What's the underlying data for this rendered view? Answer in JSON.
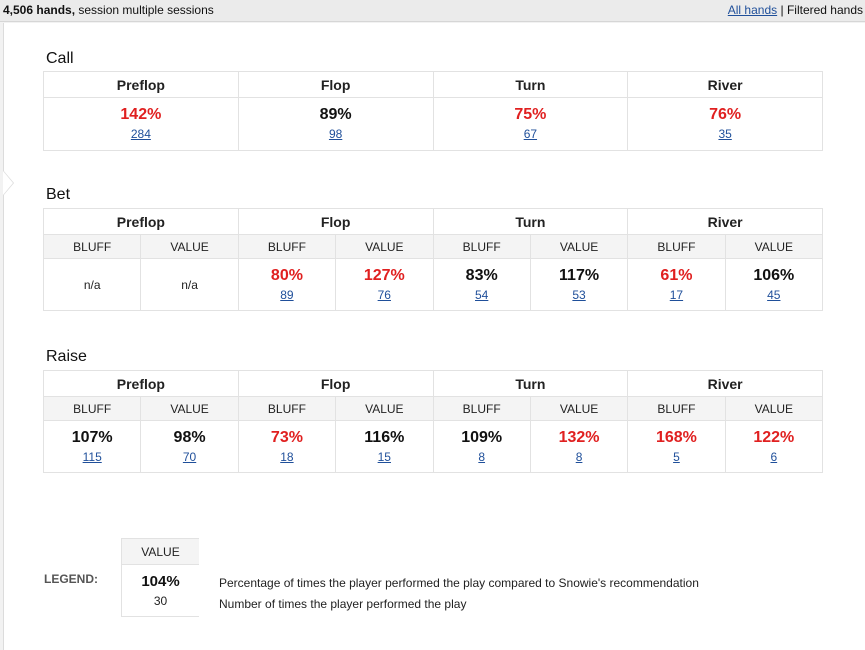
{
  "header": {
    "hands_bold": "4,506 hands,",
    "session_text": " session multiple sessions",
    "all_hands_link": "All hands",
    "separator": "|",
    "filtered_hands": "Filtered hands"
  },
  "streets": [
    "Preflop",
    "Flop",
    "Turn",
    "River"
  ],
  "sub_headers": {
    "bluff": "BLUFF",
    "value": "VALUE"
  },
  "call": {
    "title": "Call",
    "cells": [
      {
        "pct": "142%",
        "count": "284",
        "color": "#e02020"
      },
      {
        "pct": "89%",
        "count": "98",
        "color": "#111111"
      },
      {
        "pct": "75%",
        "count": "67",
        "color": "#e02020"
      },
      {
        "pct": "76%",
        "count": "35",
        "color": "#e02020"
      }
    ]
  },
  "bet": {
    "title": "Bet",
    "cells": [
      {
        "na": "n/a"
      },
      {
        "na": "n/a"
      },
      {
        "pct": "80%",
        "count": "89",
        "color": "#e02020"
      },
      {
        "pct": "127%",
        "count": "76",
        "color": "#e02020"
      },
      {
        "pct": "83%",
        "count": "54",
        "color": "#111111"
      },
      {
        "pct": "117%",
        "count": "53",
        "color": "#111111"
      },
      {
        "pct": "61%",
        "count": "17",
        "color": "#e02020"
      },
      {
        "pct": "106%",
        "count": "45",
        "color": "#111111"
      }
    ]
  },
  "raise": {
    "title": "Raise",
    "cells": [
      {
        "pct": "107%",
        "count": "115",
        "color": "#111111"
      },
      {
        "pct": "98%",
        "count": "70",
        "color": "#111111"
      },
      {
        "pct": "73%",
        "count": "18",
        "color": "#e02020"
      },
      {
        "pct": "116%",
        "count": "15",
        "color": "#111111"
      },
      {
        "pct": "109%",
        "count": "8",
        "color": "#111111"
      },
      {
        "pct": "132%",
        "count": "8",
        "color": "#e02020"
      },
      {
        "pct": "168%",
        "count": "5",
        "color": "#e02020"
      },
      {
        "pct": "122%",
        "count": "6",
        "color": "#e02020"
      }
    ]
  },
  "legend": {
    "label": "LEGEND:",
    "header": "VALUE",
    "pct": "104%",
    "count": "30",
    "pct_desc": "Percentage of times the player performed the play compared to Snowie's recommendation",
    "count_desc": "Number of times the player performed the play"
  }
}
